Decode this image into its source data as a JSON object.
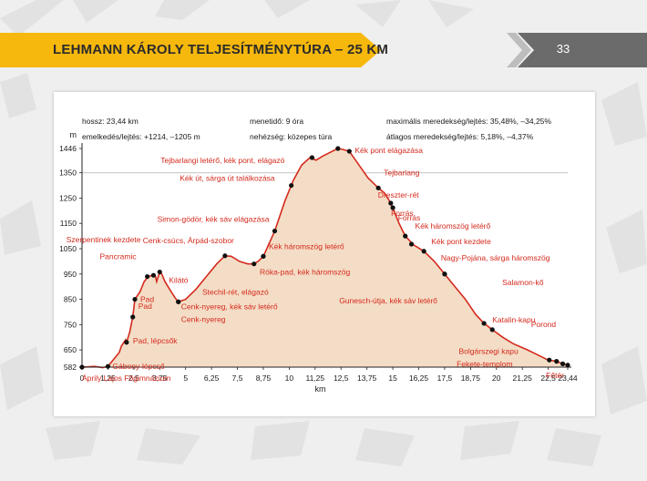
{
  "banner": {
    "title": "LEHMANN KÁROLY TELJESÍTMÉNYTÚRA – 25 KM",
    "page_number": "33"
  },
  "colors": {
    "banner": "#f6b80c",
    "tab": "#6b6b6b",
    "profile_line": "#d42a1e",
    "profile_fill": "#f4ddc6",
    "label_text": "#d42a1e"
  },
  "info": {
    "length": "hossz: 23,44 km",
    "elevation": "emelkedés/lejtés: +1214, –1205 m",
    "time": "menetidő: 9 óra",
    "difficulty": "nehézség: közepes túra",
    "max_grade": "maximális meredekség/lejtés: 35,48%, –34,25%",
    "avg_grade": "átlagos meredekség/lejtés: 5,18%, –4,37%"
  },
  "chart_data": {
    "type": "area",
    "ylabel": "m",
    "xlabel": "km",
    "xlim": [
      0,
      23.44
    ],
    "ylim": [
      582,
      1446
    ],
    "x_ticks": [
      0,
      1.25,
      2.5,
      3.75,
      5,
      6.25,
      7.5,
      8.75,
      10,
      11.25,
      12.5,
      13.75,
      15,
      16.25,
      17.5,
      18.75,
      20,
      21.25,
      22.5,
      23.44
    ],
    "x_tick_labels": [
      "0",
      "1,25",
      "2,5",
      "3,75",
      "5",
      "6,25",
      "7,5",
      "8,75",
      "10",
      "11,25",
      "12,5",
      "13,75",
      "15",
      "16,25",
      "17,5",
      "18,75",
      "20",
      "21,25",
      "22,5",
      "23,44"
    ],
    "y_ticks": [
      582,
      650,
      750,
      850,
      950,
      1050,
      1150,
      1250,
      1350,
      1446
    ],
    "y_tick_labels": [
      "582",
      "650",
      "750",
      "850",
      "950",
      "1050",
      "1150",
      "1250",
      "1350",
      "1446"
    ],
    "profile": [
      [
        0,
        582
      ],
      [
        0.3,
        583
      ],
      [
        0.6,
        585
      ],
      [
        1.0,
        580
      ],
      [
        1.25,
        585
      ],
      [
        1.5,
        610
      ],
      [
        1.8,
        640
      ],
      [
        1.9,
        665
      ],
      [
        2.1,
        690
      ],
      [
        2.15,
        680
      ],
      [
        2.3,
        720
      ],
      [
        2.45,
        780
      ],
      [
        2.55,
        850
      ],
      [
        2.8,
        880
      ],
      [
        3.0,
        920
      ],
      [
        3.2,
        940
      ],
      [
        3.4,
        945
      ],
      [
        3.55,
        940
      ],
      [
        3.6,
        920
      ],
      [
        3.75,
        958
      ],
      [
        3.85,
        950
      ],
      [
        4.0,
        920
      ],
      [
        4.3,
        880
      ],
      [
        4.5,
        855
      ],
      [
        4.65,
        840
      ],
      [
        5.0,
        850
      ],
      [
        5.5,
        890
      ],
      [
        6.0,
        940
      ],
      [
        6.5,
        990
      ],
      [
        6.9,
        1022
      ],
      [
        7.2,
        1020
      ],
      [
        7.6,
        1000
      ],
      [
        8.0,
        990
      ],
      [
        8.3,
        990
      ],
      [
        8.5,
        1000
      ],
      [
        8.75,
        1020
      ],
      [
        9.3,
        1120
      ],
      [
        9.8,
        1240
      ],
      [
        10.2,
        1320
      ],
      [
        10.6,
        1380
      ],
      [
        11.0,
        1410
      ],
      [
        11.3,
        1400
      ],
      [
        11.6,
        1415
      ],
      [
        12.0,
        1432
      ],
      [
        12.35,
        1446
      ],
      [
        12.6,
        1442
      ],
      [
        12.9,
        1435
      ],
      [
        13.2,
        1400
      ],
      [
        13.8,
        1330
      ],
      [
        14.3,
        1290
      ],
      [
        14.6,
        1270
      ],
      [
        14.9,
        1230
      ],
      [
        15.3,
        1150
      ],
      [
        15.6,
        1100
      ],
      [
        16.0,
        1065
      ],
      [
        16.5,
        1040
      ],
      [
        17.0,
        1000
      ],
      [
        17.5,
        950
      ],
      [
        18.0,
        900
      ],
      [
        18.5,
        850
      ],
      [
        19.0,
        790
      ],
      [
        19.4,
        755
      ],
      [
        19.8,
        730
      ],
      [
        20.3,
        700
      ],
      [
        20.8,
        675
      ],
      [
        21.5,
        650
      ],
      [
        22.0,
        630
      ],
      [
        22.5,
        610
      ],
      [
        22.9,
        605
      ],
      [
        23.2,
        595
      ],
      [
        23.44,
        590
      ]
    ],
    "waypoints": [
      {
        "x": 0,
        "y": 582,
        "label": "Áprily Lajos Főgimnázium",
        "anchor": "start",
        "dx": 0,
        "dy": 15
      },
      {
        "x": 1.25,
        "y": 585,
        "label": "Gábony-lépcső",
        "anchor": "start",
        "dx": 5,
        "dy": 3
      },
      {
        "x": 2.15,
        "y": 680,
        "label": "Pad, lépcsők",
        "anchor": "start",
        "dx": 7,
        "dy": 1
      },
      {
        "x": 2.45,
        "y": 780,
        "label": "Pad",
        "anchor": "start",
        "dx": 6,
        "dy": -9
      },
      {
        "x": 2.55,
        "y": 850,
        "label": "Pad",
        "anchor": "start",
        "dx": 6,
        "dy": 3
      },
      {
        "x": 3.15,
        "y": 940,
        "label": "Pancramic",
        "anchor": "end",
        "dx": -12,
        "dy": -19
      },
      {
        "x": 3.45,
        "y": 945,
        "label": "Szerpentinek kezdete",
        "anchor": "end",
        "dx": -14,
        "dy": -36
      },
      {
        "x": 3.75,
        "y": 958,
        "label": "Kilátó",
        "anchor": "start",
        "dx": 10,
        "dy": 12
      },
      {
        "x": 4.65,
        "y": 840,
        "label": "Cenk-nyereg, kék sáv letérő",
        "anchor": "start",
        "dx": 3,
        "dy": 8
      },
      {
        "x": 4.65,
        "y": 840,
        "label": "Cenk-nyereg",
        "anchor": "start",
        "dx": 3,
        "dy": 22
      },
      {
        "x": 6.9,
        "y": 1022,
        "label": "Cenk-csúcs, Árpád-szobor",
        "anchor": "end",
        "dx": 10,
        "dy": -14
      },
      {
        "x": 8.3,
        "y": 990,
        "label": "Stechil-rét, elágazó",
        "anchor": "end",
        "dx": 16,
        "dy": 34
      },
      {
        "x": 8.75,
        "y": 1020,
        "label": "Kék háromszög letérő",
        "anchor": "start",
        "dx": 6,
        "dy": -8
      },
      {
        "x": 8.75,
        "y": 1020,
        "label": "Róka-pad, kék háromszög",
        "anchor": "start",
        "dx": -4,
        "dy": 20
      },
      {
        "x": 9.3,
        "y": 1120,
        "label": "Simon-gödör, kék sáv elágazása",
        "anchor": "end",
        "dx": -6,
        "dy": -10
      },
      {
        "x": 10.1,
        "y": 1300,
        "label": "Kék út, sárga út találkozása",
        "anchor": "end",
        "dx": -18,
        "dy": -5
      },
      {
        "x": 11.1,
        "y": 1410,
        "label": "Tejbarlangi letérő, kék pont, elágazó",
        "anchor": "end",
        "dx": -30,
        "dy": 6
      },
      {
        "x": 12.35,
        "y": 1446,
        "label": "",
        "anchor": "start",
        "dx": 0,
        "dy": 0
      },
      {
        "x": 12.9,
        "y": 1435,
        "label": "Kék pont elágazása",
        "anchor": "start",
        "dx": 6,
        "dy": 2
      },
      {
        "x": 14.3,
        "y": 1290,
        "label": "Tejbarlang",
        "anchor": "start",
        "dx": 6,
        "dy": -14
      },
      {
        "x": 14.9,
        "y": 1230,
        "label": "Dreszter-rét",
        "anchor": "start",
        "dx": -14,
        "dy": -6
      },
      {
        "x": 15.0,
        "y": 1212,
        "label": "Forrás",
        "anchor": "start",
        "dx": -2,
        "dy": 9
      },
      {
        "x": 15.6,
        "y": 1100,
        "label": "Forrás",
        "anchor": "start",
        "dx": -8,
        "dy": -17
      },
      {
        "x": 15.9,
        "y": 1068,
        "label": "Kék háromszög letérő",
        "anchor": "start",
        "dx": 4,
        "dy": -17
      },
      {
        "x": 16.5,
        "y": 1040,
        "label": "Kék pont kezdete",
        "anchor": "start",
        "dx": 8,
        "dy": -8
      },
      {
        "x": 17.5,
        "y": 950,
        "label": "Nagy-Pojána, sárga háromszög",
        "anchor": "start",
        "dx": -4,
        "dy": -15
      },
      {
        "x": 17.5,
        "y": 950,
        "label": "Gunesch-útja, kék sáv letérő",
        "anchor": "end",
        "dx": -8,
        "dy": 32
      },
      {
        "x": 19.4,
        "y": 755,
        "label": "Salamon-kő",
        "anchor": "start",
        "dx": 20,
        "dy": -42
      },
      {
        "x": 19.8,
        "y": 730,
        "label": "Katalin-kapu",
        "anchor": "start",
        "dx": 0,
        "dy": -8
      },
      {
        "x": 22.55,
        "y": 610,
        "label": "Porond",
        "anchor": "start",
        "dx": -20,
        "dy": -36
      },
      {
        "x": 22.9,
        "y": 605,
        "label": "Bolgárszegi kapu",
        "anchor": "end",
        "dx": -42,
        "dy": -8
      },
      {
        "x": 23.2,
        "y": 595,
        "label": "Fekete-templom",
        "anchor": "end",
        "dx": -55,
        "dy": 3
      },
      {
        "x": 23.44,
        "y": 590,
        "label": "Főtér",
        "anchor": "end",
        "dx": -4,
        "dy": 14
      }
    ]
  }
}
